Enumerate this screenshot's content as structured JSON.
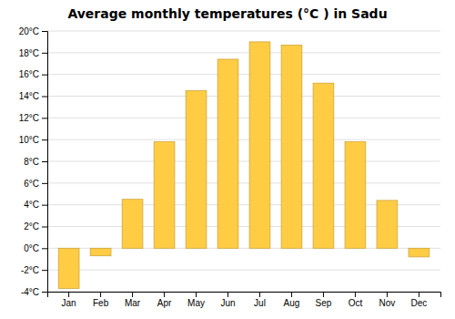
{
  "chart_data": {
    "type": "bar",
    "title": "Average monthly temperatures (°C ) in Sadu",
    "categories": [
      "Jan",
      "Feb",
      "Mar",
      "Apr",
      "May",
      "Jun",
      "Jul",
      "Aug",
      "Sep",
      "Oct",
      "Nov",
      "Dec"
    ],
    "values": [
      -3.7,
      -0.7,
      4.5,
      9.8,
      14.5,
      17.4,
      19.0,
      18.7,
      15.2,
      9.8,
      4.4,
      -0.8
    ],
    "color": "#FFCC44",
    "ylim": [
      -4,
      20
    ],
    "yticks": [
      {
        "value": -4,
        "label": "-4°C"
      },
      {
        "value": -2,
        "label": "-2°C"
      },
      {
        "value": 0,
        "label": "0°C"
      },
      {
        "value": 2,
        "label": "2°C"
      },
      {
        "value": 4,
        "label": "4°C"
      },
      {
        "value": 6,
        "label": "6°C"
      },
      {
        "value": 8,
        "label": "8°C"
      },
      {
        "value": 10,
        "label": "10°C"
      },
      {
        "value": 12,
        "label": "12°C"
      },
      {
        "value": 14,
        "label": "14°C"
      },
      {
        "value": 16,
        "label": "16°C"
      },
      {
        "value": 18,
        "label": "18°C"
      },
      {
        "value": 20,
        "label": "20°C"
      }
    ],
    "grid": true
  }
}
